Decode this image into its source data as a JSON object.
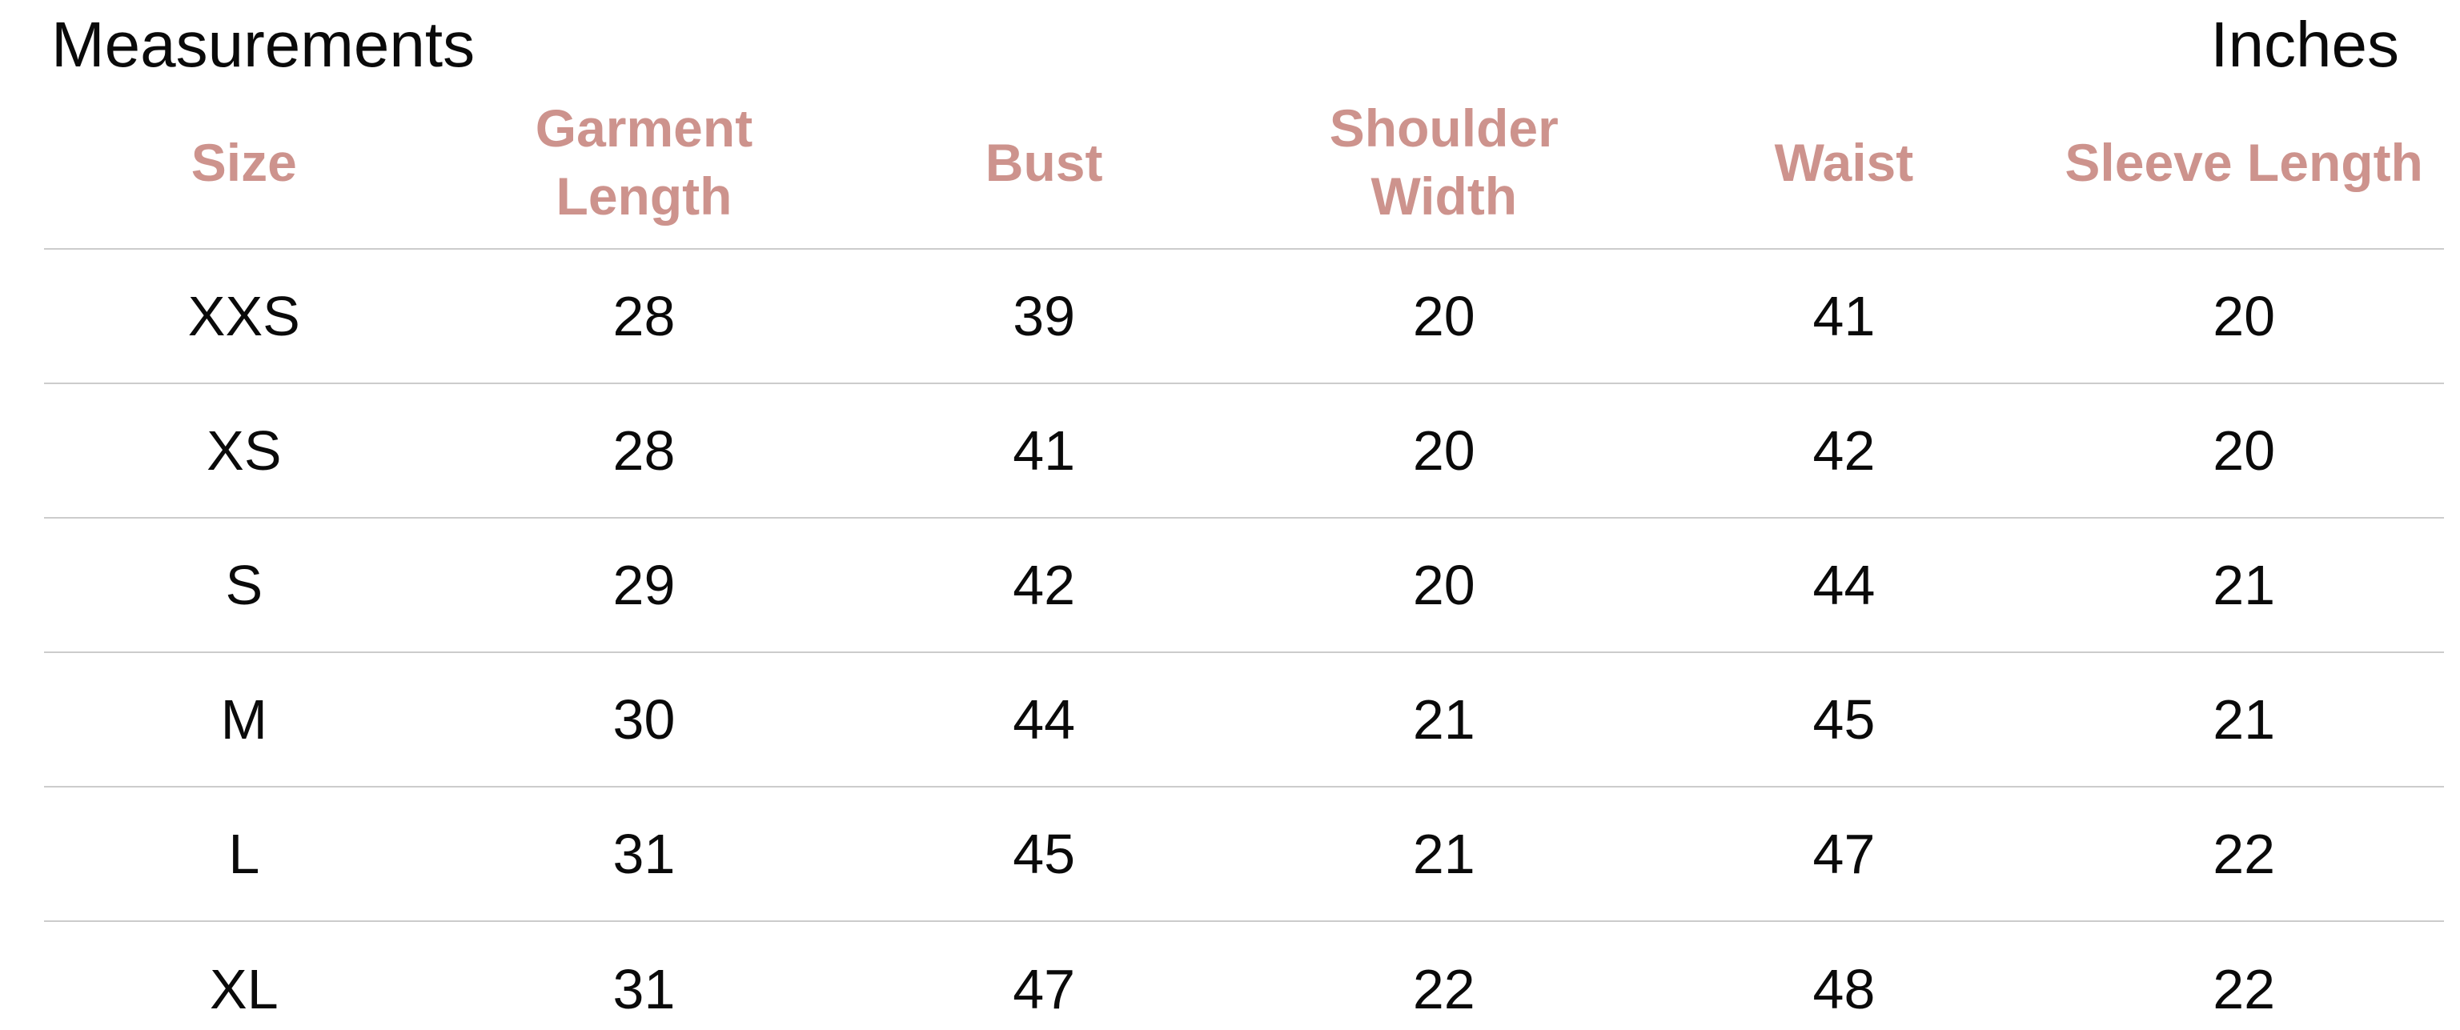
{
  "page": {
    "title": "Measurements",
    "unit_label": "Inches"
  },
  "colors": {
    "header_text": "#cd938d",
    "body_text": "#0a0a0a",
    "divider": "#cccccc",
    "background": "#ffffff"
  },
  "table": {
    "columns": [
      {
        "label": "Size",
        "lines": [
          "Size"
        ]
      },
      {
        "label": "Garment Length",
        "lines": [
          "Garment",
          "Length"
        ]
      },
      {
        "label": "Bust",
        "lines": [
          "Bust"
        ]
      },
      {
        "label": "Shoulder Width",
        "lines": [
          "Shoulder",
          "Width"
        ]
      },
      {
        "label": "Waist",
        "lines": [
          "Waist"
        ]
      },
      {
        "label": "Sleeve Length",
        "lines": [
          "Sleeve Length"
        ]
      }
    ],
    "rows": [
      {
        "size": "XXS",
        "values": [
          "28",
          "39",
          "20",
          "41",
          "20"
        ]
      },
      {
        "size": "XS",
        "values": [
          "28",
          "41",
          "20",
          "42",
          "20"
        ]
      },
      {
        "size": "S",
        "values": [
          "29",
          "42",
          "20",
          "44",
          "21"
        ]
      },
      {
        "size": "M",
        "values": [
          "30",
          "44",
          "21",
          "45",
          "21"
        ]
      },
      {
        "size": "L",
        "values": [
          "31",
          "45",
          "21",
          "47",
          "22"
        ]
      },
      {
        "size": "XL",
        "values": [
          "31",
          "47",
          "22",
          "48",
          "22"
        ]
      }
    ]
  }
}
